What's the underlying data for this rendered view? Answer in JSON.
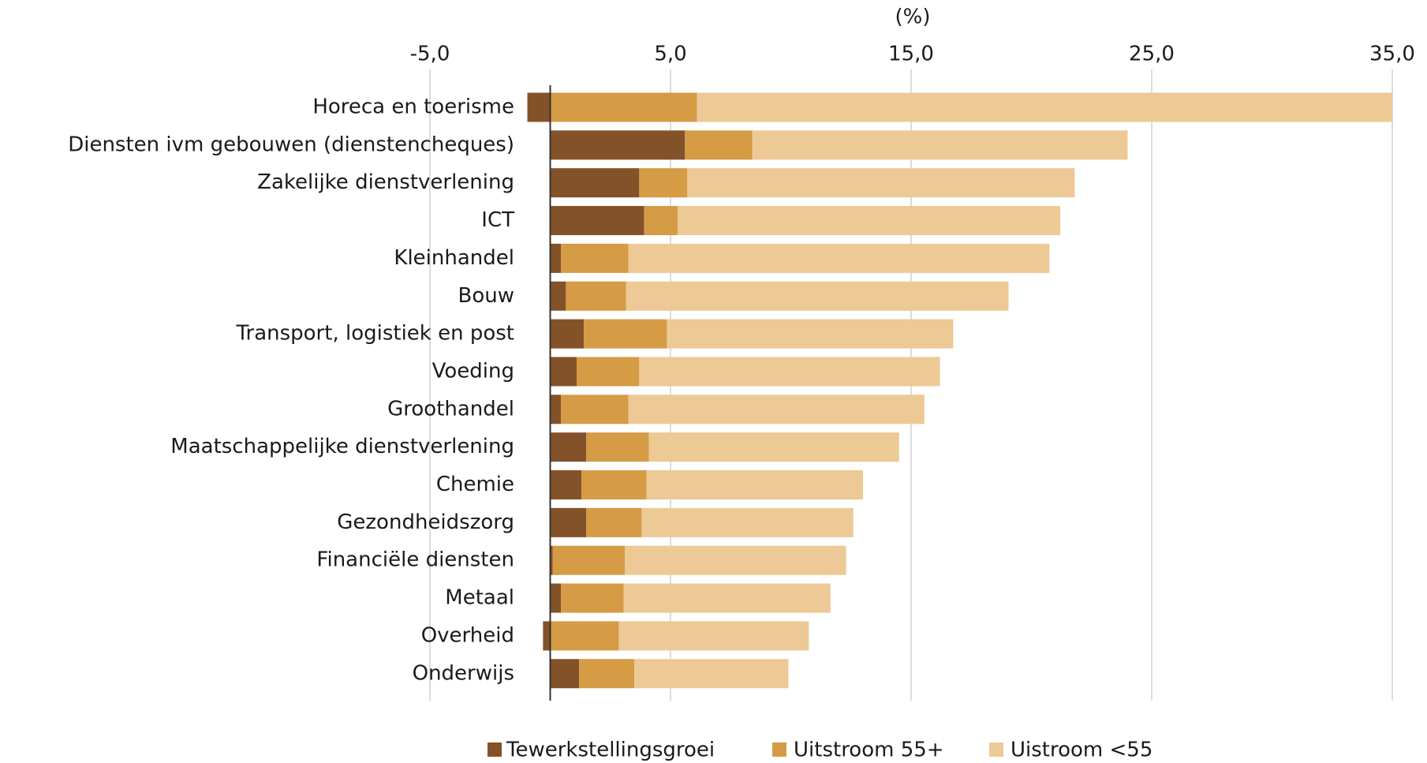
{
  "chart_data": {
    "type": "stacked_barh",
    "x_label": "(%)",
    "categories": [
      "Horeca en toerisme",
      "Diensten ivm gebouwen (dienstencheques)",
      "Zakelijke dienstverlening",
      "ICT",
      "Kleinhandel",
      "Bouw",
      "Transport, logistiek en post",
      "Voeding",
      "Groothandel",
      "Maatschappelijke dienstverlening",
      "Chemie",
      "Gezondheidszorg",
      "Financiële diensten",
      "Metaal",
      "Overheid",
      "Onderwijs"
    ],
    "series": [
      {
        "name": "Tewerkstellingsgroei",
        "color": "#845229",
        "values": [
          -0.95,
          5.6,
          3.7,
          3.9,
          0.45,
          0.65,
          1.4,
          1.1,
          0.45,
          1.5,
          1.3,
          1.5,
          0.1,
          0.45,
          -0.3,
          1.2
        ]
      },
      {
        "name": "Uitstroom 55+",
        "color": "#d59b45",
        "values": [
          6.1,
          2.8,
          2.0,
          1.4,
          2.8,
          2.5,
          3.45,
          2.6,
          2.8,
          2.6,
          2.7,
          2.3,
          3.0,
          2.6,
          2.85,
          2.3
        ]
      },
      {
        "name": "Uistroom <55",
        "color": "#ecc995",
        "values": [
          28.9,
          15.6,
          16.1,
          15.9,
          17.5,
          15.9,
          11.9,
          12.5,
          12.3,
          10.4,
          9.0,
          8.8,
          9.2,
          8.6,
          7.9,
          6.4
        ]
      }
    ],
    "xlim": [
      -5,
      35
    ],
    "xticks": [
      {
        "value": -5,
        "label": "-5,0"
      },
      {
        "value": 5,
        "label": "5,0"
      },
      {
        "value": 15,
        "label": "15,0"
      },
      {
        "value": 25,
        "label": "25,0"
      },
      {
        "value": 35,
        "label": "35,0"
      }
    ],
    "grid": true
  }
}
